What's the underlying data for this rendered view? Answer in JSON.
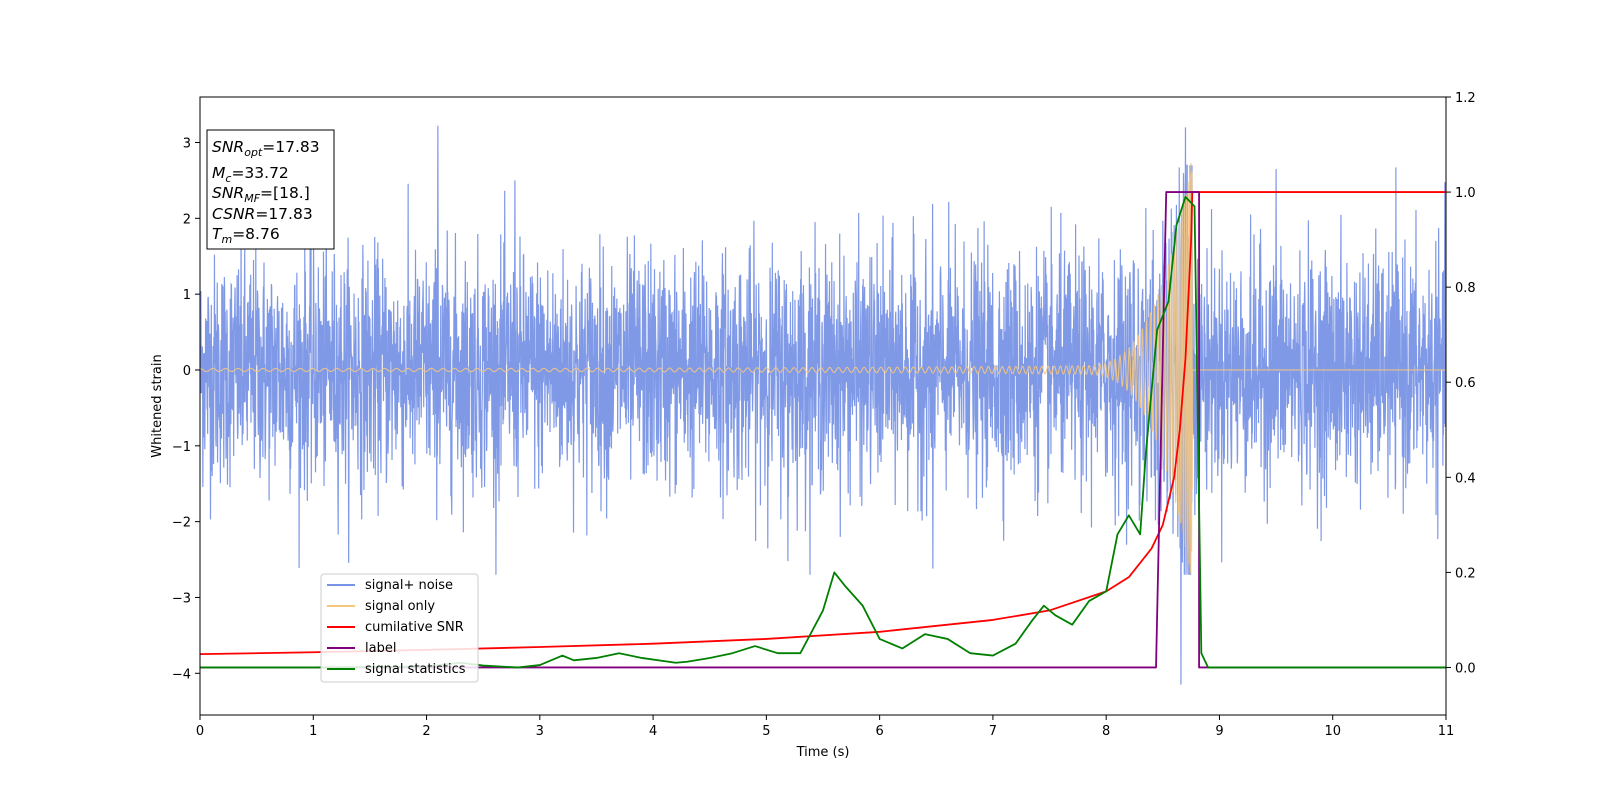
{
  "chart_data": {
    "type": "line",
    "xlabel": "Time (s)",
    "ylabel": "Whitened strain",
    "xlim": [
      0,
      11
    ],
    "ylim_left": [
      -4.55,
      3.6
    ],
    "ylim_right": [
      -0.1,
      1.2
    ],
    "x_ticks": [
      "0",
      "1",
      "2",
      "3",
      "4",
      "5",
      "6",
      "7",
      "8",
      "9",
      "10",
      "11"
    ],
    "y_ticks_left": [
      "3",
      "2",
      "1",
      "0",
      "−1",
      "−2",
      "−3",
      "−4"
    ],
    "y_ticks_right": [
      "1.2",
      "1.0",
      "0.8",
      "0.6",
      "0.4",
      "0.2",
      "0.0"
    ],
    "annotation": {
      "snr_opt": {
        "sym": "SNR",
        "sub": "opt",
        "value": "=17.83"
      },
      "mc": {
        "sym": "M",
        "sub": "c",
        "value": "=33.72"
      },
      "snr_mf": {
        "sym": "SNR",
        "sub": "MF",
        "value": "=[18.]"
      },
      "csnr": {
        "sym": "CSNR",
        "value": "=17.83"
      },
      "tm": {
        "sym": "T",
        "sub": "m",
        "value": "=8.76"
      }
    },
    "series": [
      {
        "name": "signal+ noise",
        "color": "#7894e6",
        "axis": "left",
        "noise_std": 0.75,
        "noise_peaks": [
          [
            2.1,
            3.22
          ],
          [
            8.66,
            -4.15
          ],
          [
            8.7,
            3.2
          ],
          [
            9.5,
            2.65
          ],
          [
            6.47,
            -2.62
          ],
          [
            5.19,
            -2.52
          ],
          [
            2.78,
            2.5
          ]
        ]
      },
      {
        "name": "signal only",
        "color": "#f5c77e",
        "axis": "left",
        "chirp_end": 8.76,
        "peak_amplitude": 2.9
      },
      {
        "name": "cumilative SNR",
        "color": "#ff0000",
        "axis": "right",
        "points": [
          [
            0,
            0.028
          ],
          [
            1,
            0.032
          ],
          [
            2,
            0.037
          ],
          [
            3,
            0.043
          ],
          [
            4,
            0.05
          ],
          [
            5,
            0.06
          ],
          [
            6,
            0.075
          ],
          [
            7,
            0.1
          ],
          [
            7.5,
            0.12
          ],
          [
            8,
            0.16
          ],
          [
            8.2,
            0.19
          ],
          [
            8.4,
            0.25
          ],
          [
            8.5,
            0.3
          ],
          [
            8.6,
            0.4
          ],
          [
            8.65,
            0.5
          ],
          [
            8.7,
            0.65
          ],
          [
            8.73,
            0.8
          ],
          [
            8.75,
            0.9
          ],
          [
            8.76,
            1.0
          ],
          [
            11,
            1.0
          ]
        ]
      },
      {
        "name": "label",
        "color": "#800080",
        "axis": "right",
        "points": [
          [
            0,
            0.0
          ],
          [
            8.44,
            0.0
          ],
          [
            8.53,
            1.0
          ],
          [
            8.82,
            1.0
          ],
          [
            8.82,
            0.0
          ],
          [
            11,
            0.0
          ]
        ]
      },
      {
        "name": "signal statistics",
        "color": "#008000",
        "axis": "right",
        "points": [
          [
            0,
            0.0
          ],
          [
            1.0,
            0.0
          ],
          [
            2.0,
            0.002
          ],
          [
            2.3,
            0.01
          ],
          [
            2.5,
            0.004
          ],
          [
            2.8,
            0.0
          ],
          [
            3.0,
            0.005
          ],
          [
            3.2,
            0.025
          ],
          [
            3.3,
            0.015
          ],
          [
            3.5,
            0.02
          ],
          [
            3.7,
            0.03
          ],
          [
            3.9,
            0.02
          ],
          [
            4.2,
            0.01
          ],
          [
            4.3,
            0.012
          ],
          [
            4.5,
            0.02
          ],
          [
            4.7,
            0.03
          ],
          [
            4.9,
            0.045
          ],
          [
            5.1,
            0.03
          ],
          [
            5.3,
            0.03
          ],
          [
            5.5,
            0.12
          ],
          [
            5.6,
            0.2
          ],
          [
            5.7,
            0.17
          ],
          [
            5.85,
            0.13
          ],
          [
            6.0,
            0.06
          ],
          [
            6.2,
            0.04
          ],
          [
            6.4,
            0.07
          ],
          [
            6.6,
            0.06
          ],
          [
            6.8,
            0.03
          ],
          [
            7.0,
            0.025
          ],
          [
            7.2,
            0.05
          ],
          [
            7.35,
            0.1
          ],
          [
            7.45,
            0.13
          ],
          [
            7.55,
            0.11
          ],
          [
            7.7,
            0.09
          ],
          [
            7.85,
            0.14
          ],
          [
            8.0,
            0.16
          ],
          [
            8.1,
            0.28
          ],
          [
            8.2,
            0.32
          ],
          [
            8.3,
            0.28
          ],
          [
            8.35,
            0.45
          ],
          [
            8.45,
            0.71
          ],
          [
            8.55,
            0.77
          ],
          [
            8.62,
            0.93
          ],
          [
            8.7,
            0.99
          ],
          [
            8.78,
            0.97
          ],
          [
            8.84,
            0.03
          ],
          [
            8.9,
            0.0
          ],
          [
            11,
            0.0
          ]
        ]
      }
    ],
    "legend": {
      "placement": "lower-left"
    }
  }
}
